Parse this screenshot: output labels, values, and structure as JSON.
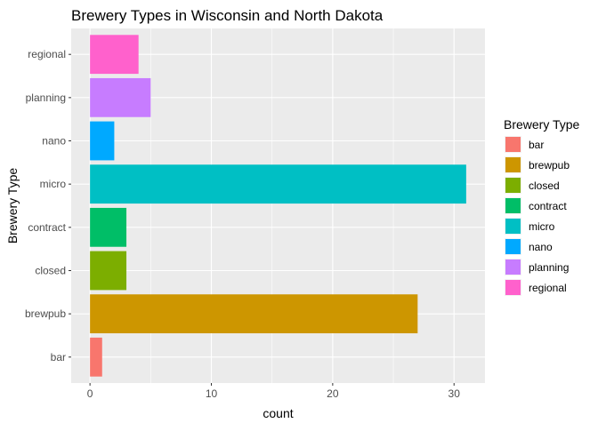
{
  "chart_data": {
    "type": "bar",
    "orientation": "horizontal",
    "title": "Brewery Types in Wisconsin and North Dakota",
    "xlabel": "count",
    "ylabel": "Brewery Type",
    "categories": [
      "bar",
      "brewpub",
      "closed",
      "contract",
      "micro",
      "nano",
      "planning",
      "regional"
    ],
    "values": [
      1,
      27,
      3,
      3,
      31,
      2,
      5,
      4
    ],
    "colors": [
      "#F8766D",
      "#CD9600",
      "#7CAE00",
      "#00BE67",
      "#00BFC4",
      "#00A9FF",
      "#C77CFF",
      "#FF61CC"
    ],
    "xlim": [
      -1.55,
      32.55
    ],
    "xticks": [
      0,
      10,
      20,
      30
    ],
    "grid": true,
    "background": "#EBEBEB",
    "gridColor": "#FFFFFF",
    "legend": {
      "title": "Brewery Type",
      "position": "right",
      "entries": [
        "bar",
        "brewpub",
        "closed",
        "contract",
        "micro",
        "nano",
        "planning",
        "regional"
      ]
    }
  }
}
